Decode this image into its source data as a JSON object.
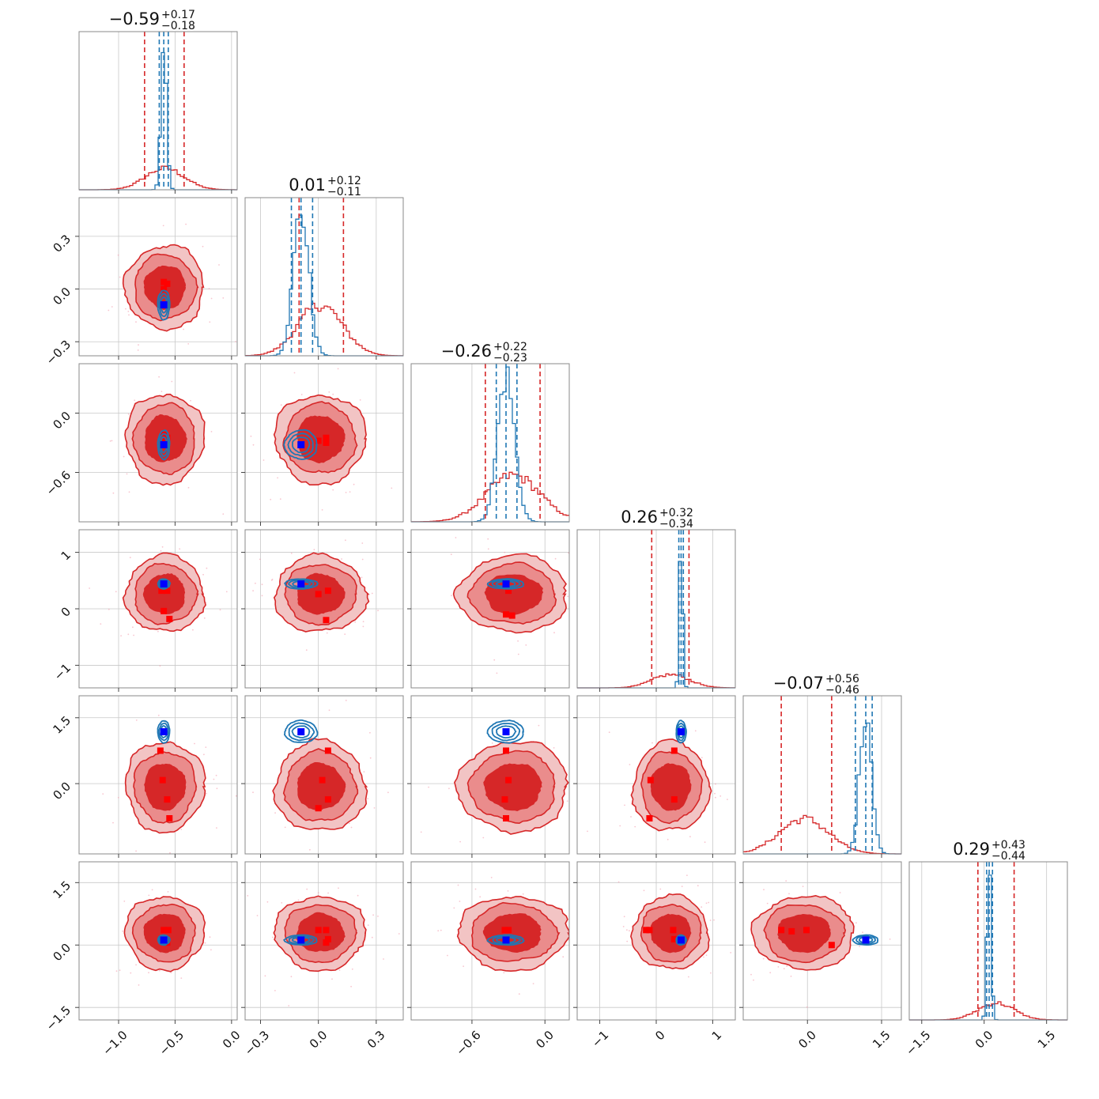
{
  "chart_data": {
    "type": "corner",
    "colors": {
      "series_a": "#d62728",
      "series_b": "#1f77b4",
      "median_marker": "#0000ff",
      "sample_marker": "#ff0000"
    },
    "grid": true,
    "dimensions": [
      {
        "title_value": "−0.59",
        "title_plus": "+0.17",
        "title_minus": "−0.18",
        "range": [
          -1.35,
          0.05
        ],
        "ticks": [
          -1.0,
          -0.5,
          0.0
        ],
        "tick_labels": [
          "−1.0",
          "−0.5",
          "0.0"
        ],
        "a": {
          "median": -0.59,
          "lo": -0.77,
          "hi": -0.42,
          "sigma": 0.17
        },
        "b": {
          "median": -0.6,
          "lo": -0.64,
          "hi": -0.56,
          "sigma": 0.025
        }
      },
      {
        "title_value": "0.01",
        "title_plus": "+0.12",
        "title_minus": "−0.11",
        "range": [
          -0.38,
          0.44
        ],
        "ticks": [
          -0.3,
          0.0,
          0.3
        ],
        "tick_labels": [
          "−0.3",
          "0.0",
          "0.3"
        ],
        "a": {
          "median": 0.01,
          "lo": -0.1,
          "hi": 0.13,
          "sigma": 0.115
        },
        "b": {
          "median": -0.09,
          "lo": -0.14,
          "hi": -0.03,
          "sigma": 0.04
        }
      },
      {
        "title_value": "−0.26",
        "title_plus": "+0.22",
        "title_minus": "−0.23",
        "range": [
          -1.1,
          0.2
        ],
        "ticks": [
          -0.6,
          0.0
        ],
        "tick_labels": [
          "−0.6",
          "0.0"
        ],
        "a": {
          "median": -0.26,
          "lo": -0.49,
          "hi": -0.04,
          "sigma": 0.22
        },
        "b": {
          "median": -0.32,
          "lo": -0.4,
          "hi": -0.23,
          "sigma": 0.07
        }
      },
      {
        "title_value": "0.26",
        "title_plus": "+0.32",
        "title_minus": "−0.34",
        "range": [
          -1.4,
          1.4
        ],
        "ticks": [
          -1,
          0,
          1
        ],
        "tick_labels": [
          "−1",
          "0",
          "1"
        ],
        "a": {
          "median": 0.26,
          "lo": -0.08,
          "hi": 0.58,
          "sigma": 0.33
        },
        "b": {
          "median": 0.44,
          "lo": 0.4,
          "hi": 0.48,
          "sigma": 0.03
        }
      },
      {
        "title_value": "−0.07",
        "title_plus": "+0.56",
        "title_minus": "−0.46",
        "range": [
          -1.3,
          1.9
        ],
        "ticks": [
          0.0,
          1.5
        ],
        "tick_labels": [
          "0.0",
          "1.5"
        ],
        "a": {
          "median": -0.07,
          "lo": -0.53,
          "hi": 0.49,
          "sigma": 0.5
        },
        "b": {
          "median": 1.18,
          "lo": 0.97,
          "hi": 1.31,
          "sigma": 0.12
        }
      },
      {
        "title_value": "0.29",
        "title_plus": "+0.43",
        "title_minus": "−0.44",
        "range": [
          -1.8,
          2.0
        ],
        "ticks": [
          -1.5,
          0.0,
          1.5
        ],
        "tick_labels": [
          "−1.5",
          "0.0",
          "1.5"
        ],
        "a": {
          "median": 0.29,
          "lo": -0.15,
          "hi": 0.72,
          "sigma": 0.43
        },
        "b": {
          "median": 0.12,
          "lo": 0.06,
          "hi": 0.2,
          "sigma": 0.05
        }
      }
    ],
    "y_ticks": {
      "1": {
        "ticks": [
          0.3,
          0.0,
          -0.3
        ],
        "tick_labels": [
          "0.3",
          "0.0",
          "−0.3"
        ],
        "range": [
          -0.38,
          0.52
        ]
      },
      "2": {
        "ticks": [
          0.0,
          -0.6
        ],
        "tick_labels": [
          "0.0",
          "−0.6"
        ],
        "range": [
          -1.1,
          0.5
        ]
      },
      "3": {
        "ticks": [
          1,
          0,
          -1
        ],
        "tick_labels": [
          "1",
          "0",
          "−1"
        ],
        "range": [
          -1.4,
          1.4
        ]
      },
      "4": {
        "ticks": [
          1.5,
          0.0
        ],
        "tick_labels": [
          "1.5",
          "0.0"
        ],
        "range": [
          -1.6,
          2.0
        ]
      },
      "5": {
        "ticks": [
          1.5,
          0.0,
          -1.5
        ],
        "tick_labels": [
          "1.5",
          "0.0",
          "−1.5"
        ],
        "range": [
          -1.8,
          2.0
        ]
      }
    },
    "sample_markers_pairwise": [
      {
        "dims": [
          0,
          1
        ],
        "points": [
          [
            -0.6,
            0.04
          ],
          [
            -0.57,
            0.03
          ],
          [
            -0.6,
            0.0
          ]
        ]
      },
      {
        "dims": [
          0,
          2
        ],
        "points": [
          [
            -0.6,
            -0.22
          ],
          [
            -0.57,
            -0.25
          ],
          [
            -0.6,
            -0.28
          ]
        ]
      },
      {
        "dims": [
          0,
          3
        ],
        "points": [
          [
            -0.62,
            0.32
          ],
          [
            -0.57,
            0.32
          ],
          [
            -0.6,
            -0.04
          ],
          [
            -0.55,
            -0.18
          ]
        ]
      },
      {
        "dims": [
          0,
          4
        ],
        "points": [
          [
            -0.63,
            0.75
          ],
          [
            -0.61,
            0.08
          ],
          [
            -0.57,
            -0.36
          ],
          [
            -0.55,
            -0.79
          ]
        ]
      },
      {
        "dims": [
          0,
          5
        ],
        "points": [
          [
            -0.6,
            0.36
          ],
          [
            -0.56,
            0.36
          ],
          [
            -0.58,
            0.14
          ],
          [
            -0.57,
            0.06
          ]
        ]
      },
      {
        "dims": [
          1,
          2
        ],
        "points": [
          [
            0.04,
            -0.25
          ],
          [
            0.0,
            -0.28
          ],
          [
            0.04,
            -0.3
          ]
        ]
      },
      {
        "dims": [
          1,
          3
        ],
        "points": [
          [
            0.05,
            0.32
          ],
          [
            0.0,
            0.26
          ],
          [
            0.04,
            -0.2
          ]
        ]
      },
      {
        "dims": [
          1,
          4
        ],
        "points": [
          [
            0.05,
            0.75
          ],
          [
            0.02,
            0.08
          ],
          [
            0.05,
            -0.36
          ],
          [
            0.0,
            -0.56
          ]
        ]
      },
      {
        "dims": [
          1,
          5
        ],
        "points": [
          [
            0.0,
            0.36
          ],
          [
            0.04,
            0.36
          ],
          [
            0.05,
            0.14
          ],
          [
            0.04,
            0.06
          ]
        ]
      },
      {
        "dims": [
          2,
          3
        ],
        "points": [
          [
            -0.3,
            0.32
          ],
          [
            -0.32,
            -0.1
          ],
          [
            -0.27,
            -0.12
          ]
        ]
      },
      {
        "dims": [
          2,
          4
        ],
        "points": [
          [
            -0.32,
            0.75
          ],
          [
            -0.3,
            0.08
          ],
          [
            -0.33,
            -0.36
          ],
          [
            -0.32,
            -0.79
          ]
        ]
      },
      {
        "dims": [
          2,
          5
        ],
        "points": [
          [
            -0.3,
            0.36
          ],
          [
            -0.33,
            0.36
          ],
          [
            -0.32,
            0.14
          ]
        ]
      },
      {
        "dims": [
          3,
          4
        ],
        "points": [
          [
            -0.1,
            0.08
          ],
          [
            0.32,
            0.75
          ],
          [
            0.32,
            -0.36
          ],
          [
            -0.12,
            -0.79
          ]
        ]
      },
      {
        "dims": [
          3,
          5
        ],
        "points": [
          [
            -0.18,
            0.36
          ],
          [
            -0.12,
            0.36
          ],
          [
            0.3,
            0.36
          ],
          [
            0.32,
            0.14
          ]
        ]
      },
      {
        "dims": [
          4,
          5
        ],
        "points": [
          [
            -0.53,
            0.36
          ],
          [
            -0.32,
            0.33
          ],
          [
            -0.02,
            0.36
          ],
          [
            0.49,
            0.0
          ]
        ]
      }
    ]
  }
}
